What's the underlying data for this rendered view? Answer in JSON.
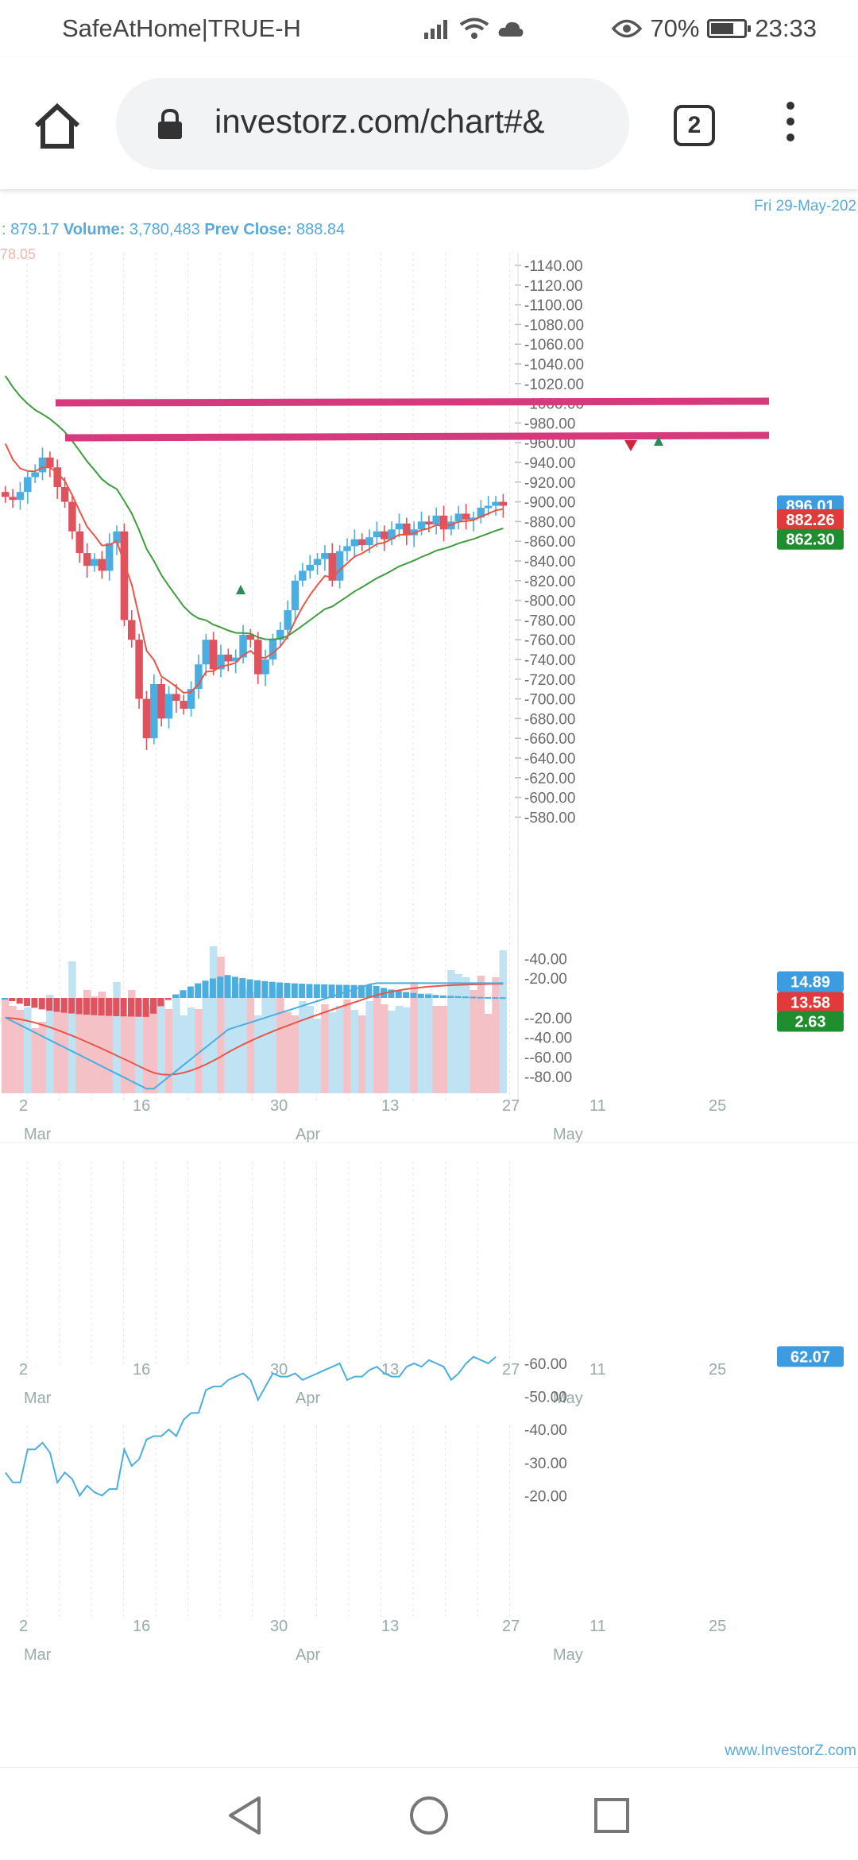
{
  "status_bar": {
    "carrier": "SafeAtHome|TRUE-H",
    "battery": "70%",
    "battery_level": 0.7,
    "time": "23:33"
  },
  "browser": {
    "url": "investorz.com/chart#&",
    "tab_count": "2"
  },
  "chart": {
    "date_label": "Fri 29-May-202",
    "info": {
      "low_value": "879.17",
      "volume_label": "Volume:",
      "volume_value": "3,780,483",
      "prev_close_label": "Prev Close:",
      "prev_close_value": "888.84",
      "faded_value": "78.05"
    },
    "watermark": "www.InvestorZ.com",
    "x_ticks": [
      "2",
      "16",
      "30",
      "13",
      "27",
      "11",
      "25"
    ],
    "x_months": [
      "Mar",
      "Apr",
      "May"
    ],
    "price_axis": [
      "1140.00",
      "1120.00",
      "1100.00",
      "1080.00",
      "1060.00",
      "1040.00",
      "1020.00",
      "1000.00",
      "980.00",
      "960.00",
      "940.00",
      "920.00",
      "900.00",
      "880.00",
      "860.00",
      "840.00",
      "820.00",
      "800.00",
      "780.00",
      "760.00",
      "740.00",
      "720.00",
      "700.00",
      "680.00",
      "660.00",
      "640.00",
      "620.00",
      "600.00",
      "580.00"
    ],
    "price_tags": {
      "close": "896.01",
      "ema_fast": "882.26",
      "ema_slow": "862.30"
    },
    "macd_axis": [
      "40.00",
      "20.00",
      "-20.00",
      "-40.00",
      "-60.00",
      "-80.00"
    ],
    "macd_tags": {
      "macd": "14.89",
      "signal": "13.58",
      "hist": "2.63"
    },
    "rsi_axis": [
      "60.00",
      "50.00",
      "40.00",
      "30.00",
      "20.00"
    ],
    "rsi_tag": "62.07",
    "colors": {
      "up": "#4aaee0",
      "down": "#e0525e",
      "ema_fast": "#e8564a",
      "ema_slow": "#3f9d3f",
      "trendline": "#d63a7c",
      "axis_text": "#57a9dc"
    }
  }
}
